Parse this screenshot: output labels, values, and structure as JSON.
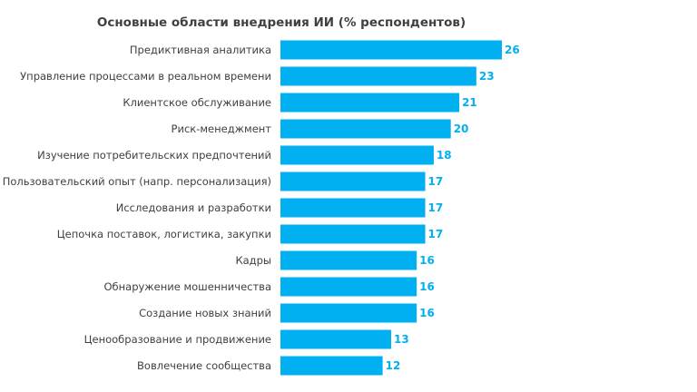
{
  "chart_data": {
    "type": "bar",
    "orientation": "horizontal",
    "title": "Основные области внедрения ИИ (% респондентов)",
    "categories": [
      "Предиктивная аналитика",
      "Управление процессами в реальном времени",
      "Клиентское обслуживание",
      "Риск-менеджмент",
      "Изучение потребительских предпочтений",
      "Пользовательский опыт (напр. персонализация)",
      "Исследования и разработки",
      "Цепочка поставок, логистика, закупки",
      "Кадры",
      "Обнаружение мошенничества",
      "Создание новых знаний",
      "Ценообразование и продвижение",
      "Вовлечение сообщества"
    ],
    "values": [
      26,
      23,
      21,
      20,
      18,
      17,
      17,
      17,
      16,
      16,
      16,
      13,
      12
    ],
    "xlim": [
      0,
      26
    ],
    "grid": false,
    "bar_color": "#00b0f0",
    "label_color": "#00b0f0"
  }
}
